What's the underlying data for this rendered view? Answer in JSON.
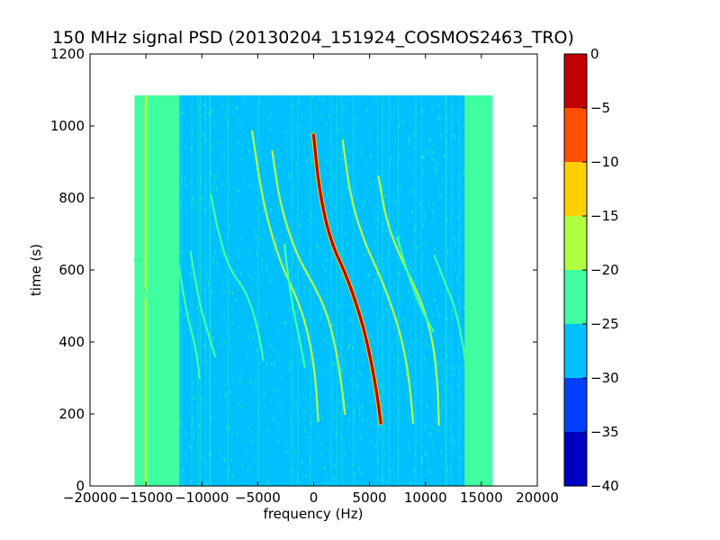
{
  "chart_data": {
    "type": "heatmap",
    "title": "150 MHz signal PSD (20130204_151924_COSMOS2463_TRO)",
    "xlabel": "frequency (Hz)",
    "ylabel": "time (s)",
    "xlim": [
      -20000,
      20000
    ],
    "ylim": [
      0,
      1200
    ],
    "x_ticks": [
      "−20000",
      "−15000",
      "−10000",
      "−5000",
      "0",
      "5000",
      "10000",
      "15000",
      "20000"
    ],
    "x_tick_values": [
      -20000,
      -15000,
      -10000,
      -5000,
      0,
      5000,
      10000,
      15000,
      20000
    ],
    "y_ticks": [
      "0",
      "200",
      "400",
      "600",
      "800",
      "1000",
      "1200"
    ],
    "y_tick_values": [
      0,
      200,
      400,
      600,
      800,
      1000,
      1200
    ],
    "data_extent": {
      "x": [
        -16000,
        16000
      ],
      "y": [
        0,
        1085
      ]
    },
    "background_level": -27,
    "band_edges": {
      "left_band": {
        "x": [
          -16000,
          -12000
        ],
        "level": -23
      },
      "right_band": {
        "x": [
          13500,
          16000
        ],
        "level": -23
      },
      "vertical_spur": {
        "x": -15000,
        "level": -18
      }
    },
    "traces": [
      {
        "name": "",
        "level": -2,
        "points": [
          [
            0,
            975
          ],
          [
            500,
            820
          ],
          [
            1500,
            680
          ],
          [
            3000,
            580
          ],
          [
            4200,
            470
          ],
          [
            5000,
            370
          ],
          [
            5700,
            250
          ],
          [
            6000,
            175
          ]
        ]
      },
      {
        "name": "",
        "level": -17,
        "points": [
          [
            -5500,
            985
          ],
          [
            -4500,
            780
          ],
          [
            -3000,
            620
          ],
          [
            -1300,
            510
          ],
          [
            -300,
            400
          ],
          [
            200,
            290
          ],
          [
            400,
            180
          ]
        ]
      },
      {
        "name": "",
        "level": -17,
        "points": [
          [
            2600,
            960
          ],
          [
            3300,
            800
          ],
          [
            4500,
            680
          ],
          [
            6000,
            580
          ],
          [
            7200,
            480
          ],
          [
            8100,
            380
          ],
          [
            8600,
            280
          ],
          [
            8900,
            175
          ]
        ]
      },
      {
        "name": "",
        "level": -17,
        "points": [
          [
            -3700,
            930
          ],
          [
            -3000,
            780
          ],
          [
            -1500,
            640
          ],
          [
            0,
            560
          ],
          [
            1200,
            480
          ],
          [
            2000,
            380
          ],
          [
            2500,
            280
          ],
          [
            2800,
            200
          ]
        ]
      },
      {
        "name": "",
        "level": -19,
        "points": [
          [
            5800,
            860
          ],
          [
            6600,
            720
          ],
          [
            8300,
            600
          ],
          [
            9700,
            510
          ],
          [
            10700,
            400
          ],
          [
            11100,
            280
          ],
          [
            11200,
            170
          ]
        ]
      },
      {
        "name": "",
        "level": -20,
        "points": [
          [
            -9200,
            810
          ],
          [
            -8500,
            700
          ],
          [
            -7500,
            600
          ],
          [
            -6000,
            540
          ],
          [
            -5000,
            440
          ],
          [
            -4500,
            350
          ]
        ]
      },
      {
        "name": "",
        "level": -21,
        "points": [
          [
            -12400,
            680
          ],
          [
            -11800,
            560
          ],
          [
            -11200,
            460
          ],
          [
            -10500,
            380
          ],
          [
            -10200,
            300
          ]
        ]
      },
      {
        "name": "",
        "level": -21,
        "points": [
          [
            -11000,
            650
          ],
          [
            -10300,
            520
          ],
          [
            -9500,
            430
          ],
          [
            -8800,
            360
          ]
        ]
      },
      {
        "name": "",
        "level": -21,
        "points": [
          [
            -2600,
            670
          ],
          [
            -2200,
            560
          ],
          [
            -1700,
            470
          ],
          [
            -1200,
            400
          ],
          [
            -800,
            330
          ]
        ]
      },
      {
        "name": "",
        "level": -21,
        "points": [
          [
            7500,
            690
          ],
          [
            8500,
            580
          ],
          [
            9500,
            500
          ],
          [
            10700,
            430
          ]
        ]
      },
      {
        "name": "",
        "level": -21,
        "points": [
          [
            10800,
            640
          ],
          [
            11800,
            560
          ],
          [
            12600,
            500
          ],
          [
            13200,
            420
          ],
          [
            13600,
            340
          ]
        ]
      },
      {
        "name": "",
        "level": -22,
        "points": [
          [
            -16000,
            630
          ],
          [
            -15300,
            570
          ],
          [
            -14700,
            500
          ],
          [
            -14300,
            420
          ]
        ]
      }
    ],
    "colorbar": {
      "ticks": [
        "0",
        "−5",
        "−10",
        "−15",
        "−20",
        "−25",
        "−30",
        "−35",
        "−40"
      ],
      "tick_values": [
        0,
        -5,
        -10,
        -15,
        -20,
        -25,
        -30,
        -35,
        -40
      ],
      "levels": [
        {
          "range": [
            -40,
            -35
          ],
          "color": "#0000c0"
        },
        {
          "range": [
            -35,
            -30
          ],
          "color": "#0040ff"
        },
        {
          "range": [
            -30,
            -25
          ],
          "color": "#00c0ff"
        },
        {
          "range": [
            -25,
            -20
          ],
          "color": "#40ffa0"
        },
        {
          "range": [
            -20,
            -15
          ],
          "color": "#b0ff40"
        },
        {
          "range": [
            -15,
            -10
          ],
          "color": "#ffd000"
        },
        {
          "range": [
            -10,
            -5
          ],
          "color": "#ff5000"
        },
        {
          "range": [
            -5,
            0
          ],
          "color": "#c00000"
        }
      ]
    }
  }
}
